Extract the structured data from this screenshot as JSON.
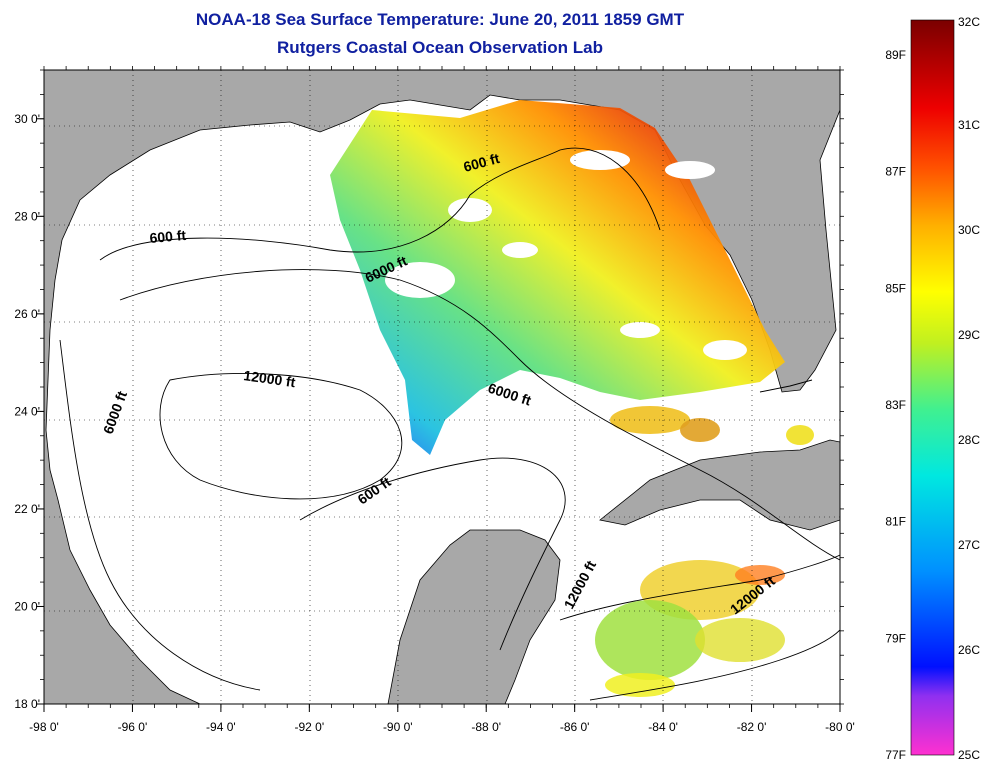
{
  "title": {
    "line1": "NOAA-18 Sea Surface Temperature:  June 20, 2011 1859 GMT",
    "line2": "Rutgers Coastal Ocean Observation Lab"
  },
  "axes": {
    "x_ticks": [
      "-98 0'",
      "-96 0'",
      "-94 0'",
      "-92 0'",
      "-90 0'",
      "-88 0'",
      "-86 0'",
      "-84 0'",
      "-82 0'",
      "-80 0'"
    ],
    "x_values": [
      -98,
      -96,
      -94,
      -92,
      -90,
      -88,
      -86,
      -84,
      -82,
      -80
    ],
    "y_ticks": [
      "18 0'",
      "20 0'",
      "22 0'",
      "24 0'",
      "26 0'",
      "28 0'",
      "30 0'"
    ],
    "y_values": [
      18,
      20,
      22,
      24,
      26,
      28,
      30
    ],
    "lon_range": [
      -98,
      -80
    ],
    "lat_range": [
      18,
      31
    ]
  },
  "contour_labels": [
    "600 ft",
    "600 ft",
    "6000 ft",
    "6000 ft",
    "6000 ft",
    "12000 ft",
    "600 ft",
    "12000 ft",
    "12000 ft"
  ],
  "colorbar": {
    "celsius": [
      "32C",
      "31C",
      "30C",
      "29C",
      "28C",
      "27C",
      "26C",
      "25C"
    ],
    "fahrenheit": [
      "89F",
      "87F",
      "85F",
      "83F",
      "81F",
      "79F",
      "77F"
    ],
    "min_c": 25,
    "max_c": 32
  },
  "colors": {
    "land": "#a8a8a8",
    "title": "#1020a0"
  }
}
